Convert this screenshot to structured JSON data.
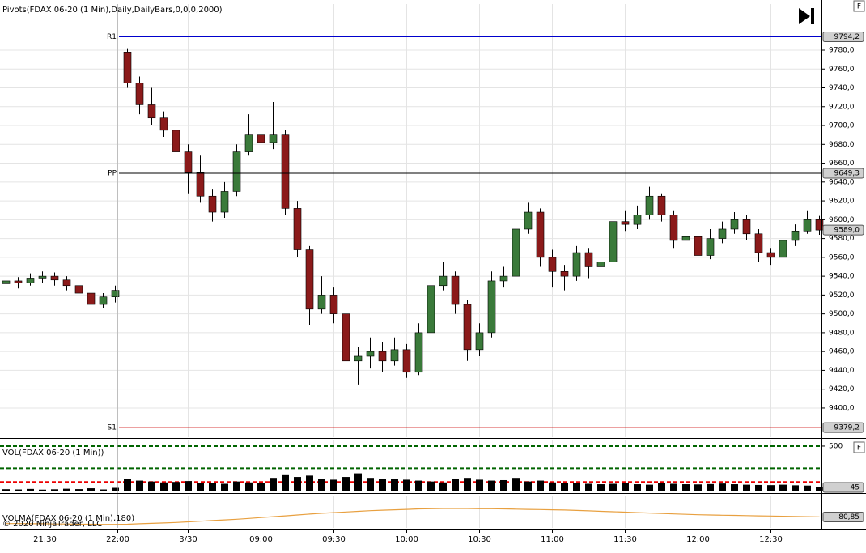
{
  "chart_data": [
    {
      "type": "candlestick",
      "title": "Pivots(FDAX 06-20 (1 Min),Daily,DailyBars,0,0,0,2000)",
      "up_color": "#3a7a3a",
      "down_color": "#8b1a1a",
      "open": [
        9532,
        9535,
        9533,
        9538,
        9540,
        9536,
        9530,
        9522,
        9510,
        9518,
        9778,
        9745,
        9722,
        9708,
        9695,
        9672,
        9650,
        9625,
        9608,
        9630,
        9672,
        9690,
        9682,
        9690,
        9612,
        9568,
        9505,
        9520,
        9500,
        9450,
        9455,
        9460,
        9450,
        9462,
        9438,
        9480,
        9530,
        9540,
        9510,
        9462,
        9480,
        9535,
        9540,
        9590,
        9608,
        9560,
        9545,
        9540,
        9565,
        9550,
        9555,
        9598,
        9595,
        9605,
        9625,
        9605,
        9578,
        9582,
        9562,
        9580,
        9590,
        9600,
        9585,
        9565,
        9560,
        9578,
        9588,
        9600
      ],
      "high": [
        9540,
        9539,
        9543,
        9545,
        9544,
        9540,
        9535,
        9527,
        9522,
        9530,
        9782,
        9752,
        9740,
        9715,
        9700,
        9680,
        9668,
        9632,
        9640,
        9680,
        9712,
        9695,
        9725,
        9695,
        9620,
        9572,
        9540,
        9528,
        9505,
        9465,
        9475,
        9470,
        9475,
        9468,
        9490,
        9540,
        9555,
        9545,
        9515,
        9490,
        9545,
        9550,
        9600,
        9618,
        9612,
        9568,
        9552,
        9572,
        9570,
        9562,
        9605,
        9610,
        9615,
        9635,
        9628,
        9610,
        9592,
        9588,
        9590,
        9598,
        9608,
        9605,
        9590,
        9570,
        9585,
        9595,
        9610,
        9604
      ],
      "low": [
        9528,
        9527,
        9530,
        9533,
        9530,
        9525,
        9517,
        9505,
        9506,
        9512,
        9740,
        9712,
        9700,
        9688,
        9665,
        9628,
        9618,
        9598,
        9602,
        9625,
        9668,
        9675,
        9675,
        9605,
        9560,
        9488,
        9500,
        9490,
        9440,
        9425,
        9442,
        9438,
        9445,
        9432,
        9435,
        9475,
        9525,
        9500,
        9450,
        9455,
        9475,
        9528,
        9535,
        9585,
        9550,
        9528,
        9525,
        9535,
        9538,
        9540,
        9550,
        9588,
        9590,
        9600,
        9598,
        9570,
        9565,
        9550,
        9558,
        9575,
        9585,
        9578,
        9555,
        9552,
        9555,
        9572,
        9585,
        9584
      ],
      "close": [
        9535,
        9533,
        9538,
        9540,
        9536,
        9530,
        9522,
        9510,
        9518,
        9525,
        9745,
        9722,
        9708,
        9695,
        9672,
        9650,
        9625,
        9608,
        9630,
        9672,
        9690,
        9682,
        9690,
        9612,
        9568,
        9505,
        9520,
        9500,
        9450,
        9455,
        9460,
        9450,
        9462,
        9438,
        9480,
        9530,
        9540,
        9510,
        9462,
        9480,
        9535,
        9540,
        9590,
        9608,
        9560,
        9545,
        9540,
        9565,
        9550,
        9555,
        9598,
        9595,
        9605,
        9625,
        9605,
        9578,
        9582,
        9562,
        9580,
        9590,
        9600,
        9585,
        9565,
        9560,
        9578,
        9588,
        9600,
        9589
      ],
      "close_label": "9589,0",
      "pivots": [
        {
          "name": "R1",
          "value": 9794.2,
          "label": "9794,2",
          "color": "#0000cc"
        },
        {
          "name": "PP",
          "value": 9649.3,
          "label": "9649,3",
          "color": "#000000"
        },
        {
          "name": "S1",
          "value": 9379.2,
          "label": "9379,2",
          "color": "#cc0000"
        }
      ],
      "xlim": [
        -0.5,
        67.1
      ],
      "xticks": [
        {
          "value": 3.2,
          "label": "21:30"
        },
        {
          "value": 9.2,
          "label": "22:00"
        },
        {
          "value": 15,
          "label": "3/30"
        },
        {
          "value": 21,
          "label": "09:00"
        },
        {
          "value": 27,
          "label": "09:30"
        },
        {
          "value": 33,
          "label": "10:00"
        },
        {
          "value": 39,
          "label": "10:30"
        },
        {
          "value": 45,
          "label": "11:00"
        },
        {
          "value": 51,
          "label": "11:30"
        },
        {
          "value": 57,
          "label": "12:00"
        },
        {
          "value": 63,
          "label": "12:30"
        }
      ],
      "ylim": [
        9369,
        9829
      ],
      "yticks": [
        {
          "value": 9400,
          "label": "9400,0"
        },
        {
          "value": 9420,
          "label": "9420,0"
        },
        {
          "value": 9440,
          "label": "9440,0"
        },
        {
          "value": 9460,
          "label": "9460,0"
        },
        {
          "value": 9480,
          "label": "9480,0"
        },
        {
          "value": 9500,
          "label": "9500,0"
        },
        {
          "value": 9520,
          "label": "9520,0"
        },
        {
          "value": 9540,
          "label": "9540,0"
        },
        {
          "value": 9560,
          "label": "9560,0"
        },
        {
          "value": 9580,
          "label": "9580,0"
        },
        {
          "value": 9600,
          "label": "9600,0"
        },
        {
          "value": 9620,
          "label": "9620,0"
        },
        {
          "value": 9640,
          "label": "9640,0"
        },
        {
          "value": 9660,
          "label": "9660,0"
        },
        {
          "value": 9680,
          "label": "9680,0"
        },
        {
          "value": 9700,
          "label": "9700,0"
        },
        {
          "value": 9720,
          "label": "9720,0"
        },
        {
          "value": 9740,
          "label": "9740,0"
        },
        {
          "value": 9760,
          "label": "9760,0"
        },
        {
          "value": 9780,
          "label": "9780,0"
        }
      ],
      "grid": true,
      "copyright": "© 2020 NinjaTrader, LLC",
      "panel_button": "F"
    },
    {
      "type": "bar",
      "title": "VOL(FDAX 06-20 (1 Min))",
      "color": "#000000",
      "values": [
        25,
        22,
        28,
        20,
        24,
        30,
        26,
        35,
        22,
        40,
        140,
        120,
        110,
        100,
        105,
        115,
        95,
        90,
        85,
        110,
        100,
        95,
        150,
        180,
        160,
        175,
        140,
        130,
        160,
        200,
        150,
        140,
        135,
        130,
        120,
        110,
        100,
        140,
        150,
        130,
        120,
        125,
        150,
        110,
        120,
        100,
        95,
        90,
        85,
        80,
        85,
        90,
        80,
        75,
        95,
        85,
        80,
        78,
        82,
        88,
        80,
        75,
        72,
        70,
        75,
        68,
        65,
        45
      ],
      "levels": [
        {
          "value": 500,
          "color": "#006400"
        },
        {
          "value": 255,
          "color": "#006400"
        },
        {
          "value": 105,
          "color": "#ee0000"
        }
      ],
      "ylim": [
        0,
        571
      ],
      "yticks": [
        500
      ],
      "panel_button": "F"
    },
    {
      "type": "line",
      "title": "VOLMA(FDAX 06-20 (1 Min),180)",
      "color": "#e8a040",
      "values": [
        50,
        50,
        49,
        49,
        48,
        48,
        47,
        47,
        46,
        46,
        47,
        49,
        51,
        53,
        55,
        58,
        61,
        64,
        67,
        70,
        74,
        78,
        82,
        86,
        90,
        94,
        98,
        101,
        104,
        107,
        110,
        112,
        114,
        116,
        118,
        119,
        120,
        120,
        120,
        119,
        119,
        118,
        117,
        116,
        115,
        114,
        113,
        111,
        109,
        107,
        105,
        103,
        101,
        99,
        97,
        95,
        93,
        91,
        90,
        89,
        88,
        87,
        86,
        85,
        84,
        83,
        82,
        80.85
      ],
      "last_label": "80,85",
      "ylim": [
        30,
        180
      ]
    }
  ]
}
